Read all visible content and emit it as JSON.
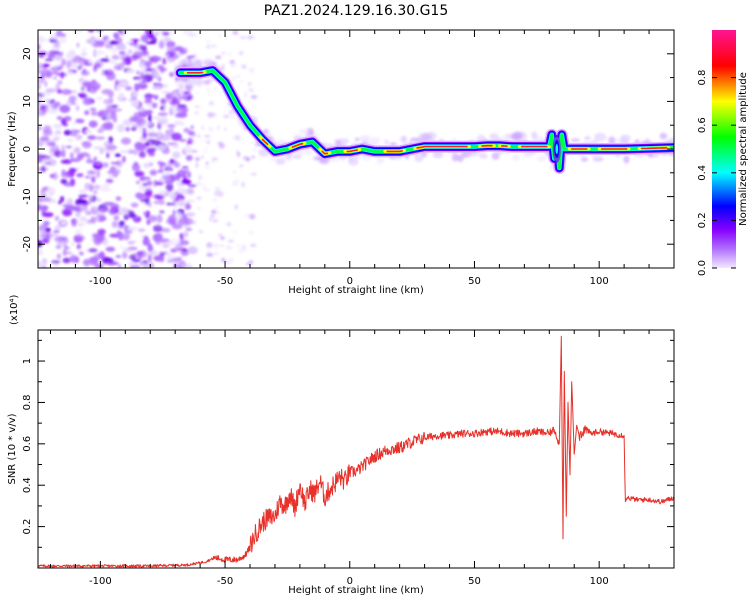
{
  "title": "PAZ1.2024.129.16.30.G15",
  "chart_data": [
    {
      "type": "heatmap",
      "xlabel": "Height of straight line (km)",
      "ylabel": "Frequency (Hz)",
      "xlim": [
        -125,
        130
      ],
      "ylim": [
        -25,
        25
      ],
      "xticks": [
        -100,
        -50,
        0,
        50,
        100
      ],
      "yticks": [
        -20,
        -10,
        0,
        10,
        20
      ],
      "colorbar": {
        "label": "Normalized spectral amplitude",
        "range": [
          0,
          1
        ],
        "ticks": [
          "0.0",
          "0.2",
          "0.4",
          "0.6",
          "0.8"
        ],
        "colors": [
          "#f2e8ff",
          "#8800ff",
          "#0000ff",
          "#00ffff",
          "#00ff00",
          "#ffff00",
          "#ff0000",
          "#ff1493"
        ]
      },
      "ridge": {
        "x": [
          -68,
          -60,
          -55,
          -50,
          -45,
          -40,
          -35,
          -30,
          -25,
          -20,
          -15,
          -12,
          -10,
          -5,
          0,
          5,
          10,
          20,
          25,
          30,
          50,
          55,
          60,
          65,
          80,
          81,
          82,
          83,
          84,
          85,
          86,
          90,
          110,
          130
        ],
        "y": [
          16,
          16,
          16.5,
          14,
          9,
          5,
          2,
          -0.5,
          0,
          1,
          1.5,
          0,
          -1,
          -0.5,
          -0.5,
          0,
          -0.5,
          -0.5,
          0,
          0.5,
          0.5,
          0.7,
          0.7,
          0.5,
          0.5,
          3,
          -2,
          2,
          -4,
          3,
          0,
          0,
          0,
          0.3
        ]
      }
    },
    {
      "type": "line",
      "xlabel": "Height of straight line (km)",
      "ylabel": "SNR (10 * v/v)",
      "multiplier": "(x10⁴)",
      "xlim": [
        -125,
        130
      ],
      "ylim": [
        0,
        1.15
      ],
      "xticks": [
        -100,
        -50,
        0,
        50,
        100
      ],
      "yticks": [
        0.2,
        0.4,
        0.6,
        0.8,
        1
      ],
      "color": "#e8312a",
      "series": [
        {
          "x": [
            -125,
            -100,
            -80,
            -65,
            -58,
            -54,
            -50,
            -45,
            -42,
            -40,
            -38,
            -35,
            -33,
            -30,
            -28,
            -26,
            -24,
            -22,
            -20,
            -18,
            -16,
            -14,
            -12,
            -10,
            -8,
            -6,
            -4,
            -2,
            0,
            3,
            6,
            10,
            15,
            20,
            25,
            30,
            35,
            40,
            45,
            50,
            55,
            60,
            65,
            70,
            75,
            80,
            82,
            84,
            84.8,
            85.5,
            86,
            86.8,
            87.5,
            88.3,
            89,
            90,
            91,
            92,
            94,
            97,
            100,
            105,
            110,
            110.5,
            111,
            115,
            120,
            125,
            130
          ],
          "y": [
            0.01,
            0.01,
            0.01,
            0.015,
            0.03,
            0.05,
            0.04,
            0.04,
            0.06,
            0.1,
            0.16,
            0.22,
            0.24,
            0.25,
            0.32,
            0.3,
            0.36,
            0.29,
            0.4,
            0.31,
            0.38,
            0.36,
            0.42,
            0.34,
            0.38,
            0.41,
            0.44,
            0.42,
            0.46,
            0.47,
            0.5,
            0.54,
            0.57,
            0.58,
            0.61,
            0.63,
            0.64,
            0.64,
            0.65,
            0.65,
            0.66,
            0.66,
            0.65,
            0.65,
            0.66,
            0.65,
            0.67,
            0.6,
            1.12,
            0.14,
            0.95,
            0.25,
            0.8,
            0.45,
            0.9,
            0.55,
            0.69,
            0.64,
            0.67,
            0.65,
            0.66,
            0.65,
            0.64,
            0.32,
            0.34,
            0.33,
            0.33,
            0.32,
            0.34
          ]
        }
      ]
    }
  ]
}
